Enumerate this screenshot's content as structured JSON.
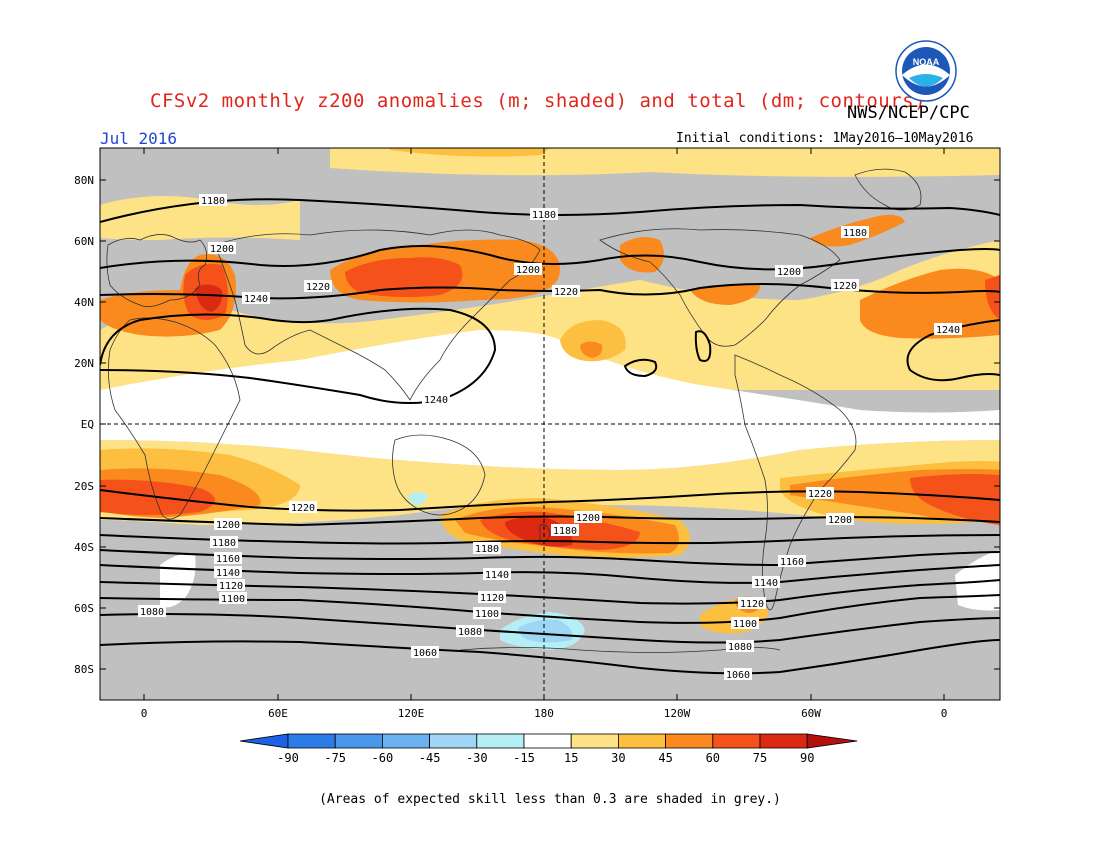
{
  "title": "CFSv2 monthly z200 anomalies (m; shaded) and total (dm; contours)",
  "agency": "NWS/NCEP/CPC",
  "logo_text": "NOAA",
  "month": "Jul 2016",
  "initial_conditions": "Initial conditions: 1May2016–10May2016",
  "footnote": "(Areas of expected skill less than 0.3 are shaded in grey.)",
  "colors": {
    "skill_grey": "#c0c0c0",
    "y15": "#fde386",
    "y30": "#fdbf40",
    "o45": "#fb8a1e",
    "o60": "#f4521a",
    "r75": "#dc2a12",
    "r90": "#b3110c",
    "b15": "#b5eef5",
    "b30": "#9fd5f5"
  },
  "map": {
    "lat_labels": [
      "80N",
      "60N",
      "40N",
      "20N",
      "EQ",
      "20S",
      "40S",
      "60S",
      "80S"
    ],
    "lon_labels": [
      "0",
      "60E",
      "120E",
      "180",
      "120W",
      "60W",
      "0"
    ]
  },
  "contour_labels": [
    "1180",
    "1180",
    "1180",
    "1200",
    "1200",
    "1200",
    "1220",
    "1220",
    "1220",
    "1240",
    "1240",
    "1240",
    "1220",
    "1220",
    "1200",
    "1200",
    "1200",
    "1180",
    "1180",
    "1180",
    "1160",
    "1160",
    "1140",
    "1140",
    "1140",
    "1120",
    "1120",
    "1120",
    "1100",
    "1100",
    "1100",
    "1080",
    "1080",
    "1080",
    "1060",
    "1060"
  ],
  "colorbar": {
    "ticks": [
      "-90",
      "-75",
      "-60",
      "-45",
      "-30",
      "-15",
      "15",
      "30",
      "45",
      "60",
      "75",
      "90"
    ],
    "colors": [
      "#1c62e6",
      "#2c7ce8",
      "#4a96ea",
      "#6bb0f0",
      "#9fd5f5",
      "#b5eef5",
      "#ffffff",
      "#fde386",
      "#fdbf40",
      "#fb8a1e",
      "#f4521a",
      "#dc2a12",
      "#b3110c"
    ]
  }
}
